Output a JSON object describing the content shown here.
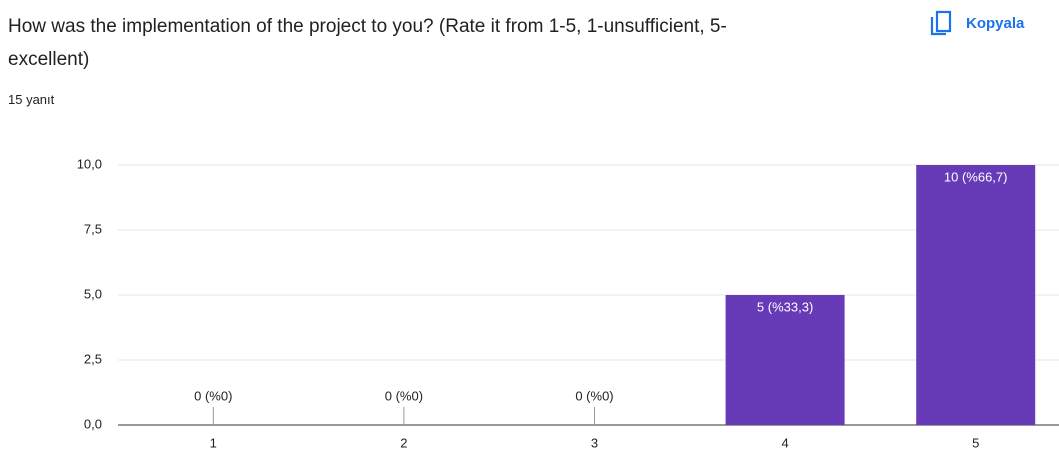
{
  "chart_data": {
    "type": "bar",
    "title": "How was the implementation of the project to you? (Rate it from 1-5, 1-unsufficient, 5-excellent)",
    "subtitle": "15 yanıt",
    "copy_button": "Kopyala",
    "categories": [
      "1",
      "2",
      "3",
      "4",
      "5"
    ],
    "values": [
      0,
      0,
      0,
      5,
      10
    ],
    "value_labels": [
      "0 (%0)",
      "0 (%0)",
      "0 (%0)",
      "5 (%33,3)",
      "10 (%66,7)"
    ],
    "color": "#673ab7",
    "ylim": [
      0,
      10
    ],
    "yticks": [
      {
        "value": 0,
        "label": "0,0"
      },
      {
        "value": 2.5,
        "label": "2,5"
      },
      {
        "value": 5,
        "label": "5,0"
      },
      {
        "value": 7.5,
        "label": "7,5"
      },
      {
        "value": 10,
        "label": "10,0"
      }
    ],
    "grid": true
  }
}
